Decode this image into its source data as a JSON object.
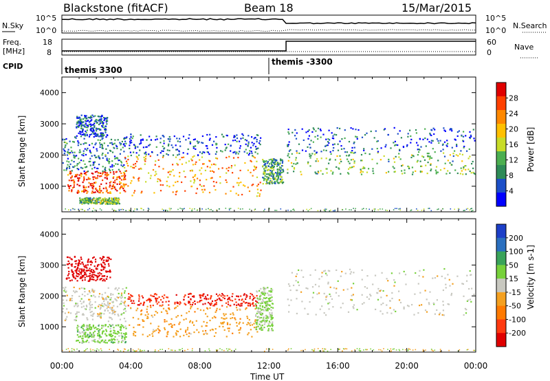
{
  "header": {
    "station": "Blackstone (fitACF)",
    "beam": "Beam 18",
    "date": "15/Mar/2015"
  },
  "chart_data": [
    {
      "type": "line",
      "panel": "noise",
      "left_label": "N.Sky",
      "right_label": "N.Search",
      "left_ticks": [
        "10^5",
        "10^0"
      ],
      "right_ticks": [
        "10^5",
        "10^0"
      ],
      "x": [
        "00:00",
        "04:00",
        "08:00",
        "12:00",
        "16:00",
        "20:00",
        "00:00"
      ]
    },
    {
      "type": "line",
      "panel": "frequency",
      "left_label_line1": "Freq.",
      "left_label_line2": "[MHz]",
      "right_label": "Nave",
      "left_ticks": [
        18,
        8
      ],
      "right_ticks": [
        60,
        0
      ],
      "step_time_hours": 13.0
    },
    {
      "type": "table",
      "panel": "cpid",
      "label": "CPID",
      "segments": [
        {
          "start_hours": 0.0,
          "text": "themis 3300"
        },
        {
          "start_hours": 12.0,
          "text": "themis -3300"
        }
      ]
    },
    {
      "type": "heatmap",
      "panel": "power",
      "ylabel": "Slant Range [km]",
      "xlabel": "",
      "xlim_hours": [
        0,
        24
      ],
      "ylim": [
        180,
        4500
      ],
      "y_ticks": [
        1000,
        2000,
        3000,
        4000
      ],
      "colorbar": {
        "label": "Power [dB]",
        "ticks": [
          28,
          24,
          20,
          16,
          12,
          8,
          4
        ],
        "colors": [
          "#e00000",
          "#ff4000",
          "#ff8800",
          "#ffc000",
          "#c8dc28",
          "#4caf50",
          "#2e8b57",
          "#1c4fc8",
          "#0000ff"
        ]
      },
      "scatter_regions": [
        {
          "t0": 0.3,
          "t1": 3.7,
          "r0": 800,
          "r1": 1500,
          "value": 24
        },
        {
          "t0": 0.0,
          "t1": 3.7,
          "r0": 1500,
          "r1": 2600,
          "value": 10
        },
        {
          "t0": 0.8,
          "t1": 2.6,
          "r0": 2600,
          "r1": 3300,
          "value": 8
        },
        {
          "t0": 3.5,
          "t1": 11.5,
          "r0": 700,
          "r1": 2000,
          "value": 20
        },
        {
          "t0": 3.5,
          "t1": 11.5,
          "r0": 2000,
          "r1": 2700,
          "value": 8
        },
        {
          "t0": 1.0,
          "t1": 3.3,
          "r0": 450,
          "r1": 650,
          "value": 14
        },
        {
          "t0": 11.6,
          "t1": 12.8,
          "r0": 1100,
          "r1": 1900,
          "value": 12
        },
        {
          "t0": 13.0,
          "t1": 24.0,
          "r0": 1400,
          "r1": 2100,
          "value": 14
        },
        {
          "t0": 13.0,
          "t1": 24.0,
          "r0": 2100,
          "r1": 2900,
          "value": 8
        }
      ]
    },
    {
      "type": "heatmap",
      "panel": "velocity",
      "ylabel": "Slant Range [km]",
      "xlabel": "Time UT",
      "xlim_hours": [
        0,
        24
      ],
      "ylim": [
        180,
        4500
      ],
      "y_ticks": [
        1000,
        2000,
        3000,
        4000
      ],
      "x_ticks": [
        "00:00",
        "04:00",
        "08:00",
        "12:00",
        "16:00",
        "20:00",
        "00:00"
      ],
      "colorbar": {
        "label": "Velocity [m s-1]",
        "ticks": [
          200,
          100,
          50,
          15,
          -15,
          -50,
          -100,
          -200
        ],
        "colors": [
          "#1c3fc8",
          "#2a6fbf",
          "#3aa35a",
          "#77d13b",
          "#c8c8c0",
          "#f4a020",
          "#ff7a00",
          "#ff3a10",
          "#e00000"
        ]
      },
      "scatter_regions": [
        {
          "t0": 0.2,
          "t1": 2.8,
          "r0": 2500,
          "r1": 3300,
          "value": -200
        },
        {
          "t0": 0.0,
          "t1": 3.7,
          "r0": 1200,
          "r1": 2300,
          "value": 0
        },
        {
          "t0": 0.8,
          "t1": 3.7,
          "r0": 500,
          "r1": 1100,
          "value": 40
        },
        {
          "t0": 3.8,
          "t1": 11.3,
          "r0": 1700,
          "r1": 2100,
          "value": -150
        },
        {
          "t0": 3.8,
          "t1": 11.3,
          "r0": 700,
          "r1": 1700,
          "value": -50
        },
        {
          "t0": 11.2,
          "t1": 12.2,
          "r0": 900,
          "r1": 2300,
          "value": 30
        },
        {
          "t0": 13.0,
          "t1": 24.0,
          "r0": 1400,
          "r1": 2900,
          "value": 0
        }
      ]
    }
  ]
}
